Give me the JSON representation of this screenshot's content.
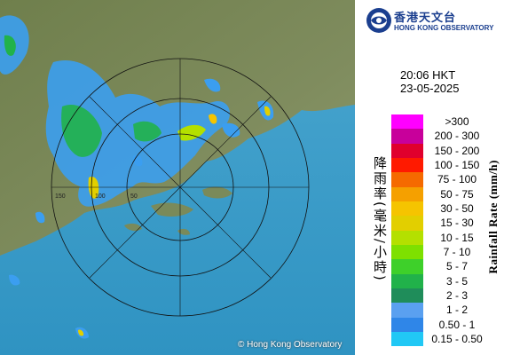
{
  "app": {
    "org_cn": "香港天文台",
    "org_en": "HONG KONG OBSERVATORY",
    "copyright": "© Hong Kong Observatory"
  },
  "timestamp": {
    "time": "20:06 HKT",
    "date": "23-05-2025"
  },
  "axis": {
    "label_cn": "降雨率(毫米/小時)",
    "label_en": "Rainfall Rate (mm/h)"
  },
  "legend": [
    {
      "label": ">300",
      "color": "#ff00ff"
    },
    {
      "label": "200 - 300",
      "color": "#c8009b"
    },
    {
      "label": "150 - 200",
      "color": "#e0002d"
    },
    {
      "label": "100 - 150",
      "color": "#ff1a00"
    },
    {
      "label": "75 - 100",
      "color": "#f56a00"
    },
    {
      "label": "50 - 75",
      "color": "#f5a000"
    },
    {
      "label": "30 - 50",
      "color": "#f5c400"
    },
    {
      "label": "15 - 30",
      "color": "#e2cf00"
    },
    {
      "label": "10 - 15",
      "color": "#b4e000"
    },
    {
      "label": "7 - 10",
      "color": "#7ee000"
    },
    {
      "label": "5 - 7",
      "color": "#3ed02a"
    },
    {
      "label": "3 - 5",
      "color": "#21b24a"
    },
    {
      "label": "2 - 3",
      "color": "#1f8d5a"
    },
    {
      "label": "1 - 2",
      "color": "#5aa0f0"
    },
    {
      "label": "0.50 - 1",
      "color": "#2f86e8"
    },
    {
      "label": "0.15 - 0.50",
      "color": "#21c8f5"
    }
  ],
  "map": {
    "range_rings": [
      "50",
      "100",
      "150"
    ],
    "colors": {
      "sea": "#52a8cc",
      "land": "#7d8c5a",
      "rain_light": "#3b9ef0",
      "rain_mid": "#21b24a",
      "rain_heavy": "#f5c400"
    }
  }
}
